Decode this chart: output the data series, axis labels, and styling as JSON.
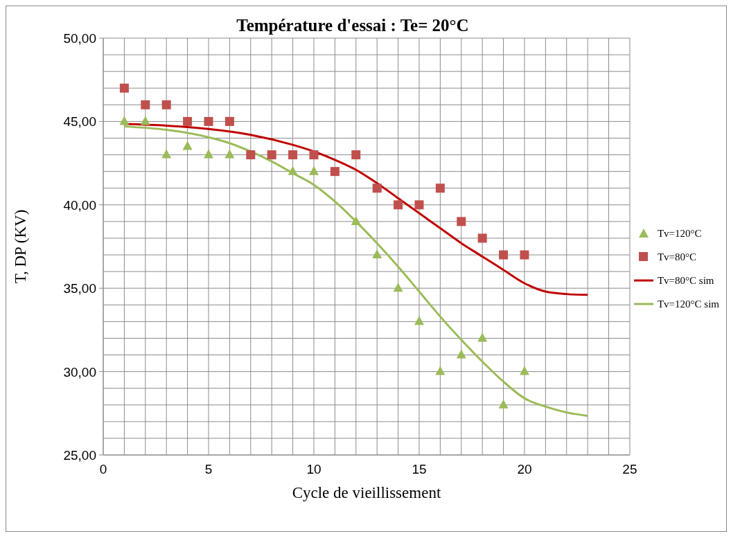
{
  "chart_data": {
    "type": "scatter",
    "title": "Température d'essai : Te= 20°C",
    "xlabel": "Cycle de vieillissement",
    "ylabel": "T, DP (KV)",
    "xlim": [
      0,
      25
    ],
    "ylim": [
      25,
      50
    ],
    "xticks": [
      0,
      {
        "value": 1,
        "label": null
      },
      {
        "value": 2,
        "label": null
      },
      {
        "value": 3,
        "label": null
      },
      {
        "value": 4,
        "label": null
      },
      5,
      {
        "value": 6,
        "label": null
      },
      {
        "value": 7,
        "label": null
      },
      {
        "value": 8,
        "label": null
      },
      {
        "value": 9,
        "label": null
      },
      10,
      {
        "value": 11,
        "label": null
      },
      {
        "value": 12,
        "label": null
      },
      {
        "value": 13,
        "label": null
      },
      {
        "value": 14,
        "label": null
      },
      15,
      {
        "value": 16,
        "label": null
      },
      {
        "value": 17,
        "label": null
      },
      {
        "value": 18,
        "label": null
      },
      {
        "value": 19,
        "label": null
      },
      20,
      {
        "value": 21,
        "label": null
      },
      {
        "value": 22,
        "label": null
      },
      {
        "value": 23,
        "label": null
      },
      {
        "value": 24,
        "label": null
      },
      25
    ],
    "yticks": [
      {
        "value": 25,
        "label": "25,00"
      },
      {
        "value": 26,
        "label": null
      },
      {
        "value": 27,
        "label": null
      },
      {
        "value": 28,
        "label": null
      },
      {
        "value": 29,
        "label": null
      },
      {
        "value": 30,
        "label": "30,00"
      },
      {
        "value": 31,
        "label": null
      },
      {
        "value": 32,
        "label": null
      },
      {
        "value": 33,
        "label": null
      },
      {
        "value": 34,
        "label": null
      },
      {
        "value": 35,
        "label": "35,00"
      },
      {
        "value": 36,
        "label": null
      },
      {
        "value": 37,
        "label": null
      },
      {
        "value": 38,
        "label": null
      },
      {
        "value": 39,
        "label": null
      },
      {
        "value": 40,
        "label": "40,00"
      },
      {
        "value": 41,
        "label": null
      },
      {
        "value": 42,
        "label": null
      },
      {
        "value": 43,
        "label": null
      },
      {
        "value": 44,
        "label": null
      },
      {
        "value": 45,
        "label": "45,00"
      },
      {
        "value": 46,
        "label": null
      },
      {
        "value": 47,
        "label": null
      },
      {
        "value": 48,
        "label": null
      },
      {
        "value": 49,
        "label": null
      },
      {
        "value": 50,
        "label": "50,00"
      }
    ],
    "grid": true,
    "legend": "right",
    "series": [
      {
        "name": "Tv=120°C",
        "type": "scatter",
        "marker": "triangle",
        "color": "#9bbb59",
        "x": [
          1,
          2,
          3,
          4,
          5,
          6,
          9,
          10,
          12,
          13,
          14,
          15,
          16,
          17,
          18,
          19,
          20
        ],
        "values": [
          45,
          45,
          43,
          43.5,
          43,
          43,
          42,
          42,
          39,
          37,
          35,
          33,
          30,
          31,
          32,
          28,
          30
        ]
      },
      {
        "name": "Tv=80°C",
        "type": "scatter",
        "marker": "square",
        "color": "#c0504d",
        "x": [
          1,
          2,
          3,
          4,
          5,
          6,
          7,
          8,
          9,
          10,
          11,
          12,
          13,
          14,
          15,
          16,
          17,
          18,
          19,
          20
        ],
        "values": [
          47,
          46,
          46,
          45,
          45,
          45,
          43,
          43,
          43,
          43,
          42,
          43,
          41,
          40,
          40,
          41,
          39,
          38,
          37,
          37
        ]
      },
      {
        "name": "Tv=80°C sim",
        "type": "line",
        "marker": "none",
        "color": "#c00000",
        "x": [
          1,
          3,
          5,
          7,
          9,
          10,
          11,
          12,
          13,
          14,
          15,
          16,
          17,
          18,
          19,
          20,
          21,
          22,
          23
        ],
        "values": [
          44.85,
          44.75,
          44.55,
          44.2,
          43.6,
          43.2,
          42.7,
          42.1,
          41.3,
          40.4,
          39.5,
          38.6,
          37.7,
          36.9,
          36.1,
          35.3,
          34.8,
          34.65,
          34.6
        ]
      },
      {
        "name": "Tv=120°C sim",
        "type": "line",
        "marker": "none",
        "color": "#9bbb59",
        "x": [
          1,
          3,
          5,
          6,
          7,
          8,
          9,
          10,
          11,
          12,
          13,
          14,
          15,
          16,
          17,
          18,
          19,
          20,
          21,
          22,
          23
        ],
        "values": [
          44.7,
          44.5,
          44.05,
          43.7,
          43.2,
          42.6,
          41.9,
          41.2,
          40.2,
          39.0,
          37.7,
          36.3,
          34.8,
          33.3,
          31.9,
          30.6,
          29.4,
          28.4,
          27.9,
          27.55,
          27.35
        ]
      }
    ]
  }
}
